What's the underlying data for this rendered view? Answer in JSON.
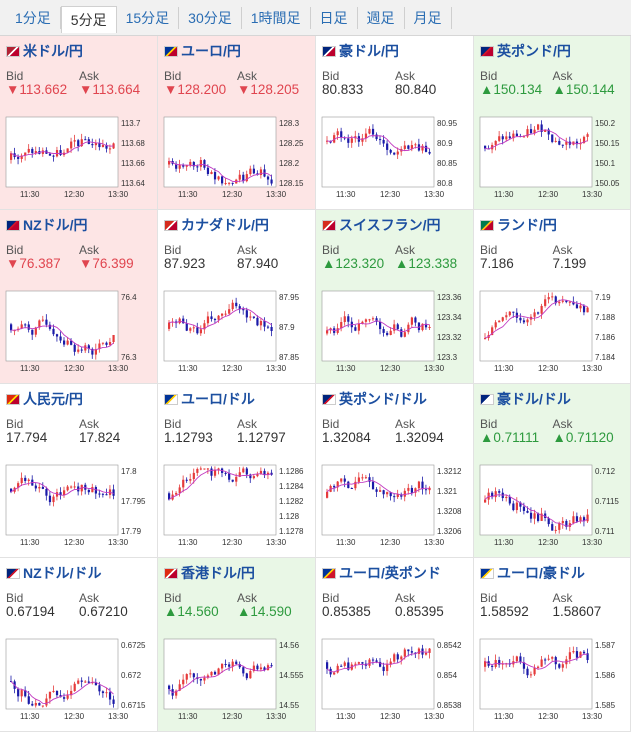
{
  "tabs": [
    {
      "label": "1分足",
      "active": false
    },
    {
      "label": "5分足",
      "active": true
    },
    {
      "label": "15分足",
      "active": false
    },
    {
      "label": "30分足",
      "active": false
    },
    {
      "label": "1時間足",
      "active": false
    },
    {
      "label": "日足",
      "active": false
    },
    {
      "label": "週足",
      "active": false
    },
    {
      "label": "月足",
      "active": false
    }
  ],
  "bid_label": "Bid",
  "ask_label": "Ask",
  "x_ticks": [
    "11:30",
    "12:30",
    "13:30"
  ],
  "colors": {
    "up_candle": "#e53b3b",
    "down_candle": "#1a1aa8",
    "ma": "#c23ac2",
    "down_text": "#e0454f",
    "up_text": "#2d9a3e",
    "down_bg": "#fde5e5",
    "up_bg": "#e9f7e6"
  },
  "pairs": [
    {
      "name": "米ドル/円",
      "flag": "us-jp-flag",
      "trend": "down",
      "bid": "▼113.662",
      "ask": "▼113.664",
      "y_ticks": [
        "113.7",
        "113.68",
        "113.66",
        "113.64"
      ],
      "base": 113.665,
      "range": 0.07
    },
    {
      "name": "ユーロ/円",
      "flag": "eu-jp-flag",
      "trend": "down",
      "bid": "▼128.200",
      "ask": "▼128.205",
      "y_ticks": [
        "128.3",
        "128.25",
        "128.2",
        "128.15"
      ],
      "base": 128.23,
      "range": 0.15
    },
    {
      "name": "豪ドル/円",
      "flag": "au-jp-flag",
      "trend": "flat",
      "bid": "80.833",
      "ask": "80.840",
      "y_ticks": [
        "80.95",
        "80.9",
        "80.85",
        "80.8"
      ],
      "base": 80.86,
      "range": 0.15
    },
    {
      "name": "英ポンド/円",
      "flag": "gb-jp-flag",
      "trend": "up",
      "bid": "▲150.134",
      "ask": "▲150.144",
      "y_ticks": [
        "150.2",
        "150.15",
        "150.1",
        "150.05"
      ],
      "base": 150.13,
      "range": 0.15
    },
    {
      "name": "NZドル/円",
      "flag": "nz-jp-flag",
      "trend": "down",
      "bid": "▼76.387",
      "ask": "▼76.399",
      "y_ticks": [
        "76.4",
        "76.3"
      ],
      "base": 76.4,
      "range": 0.14
    },
    {
      "name": "カナダドル/円",
      "flag": "ca-jp-flag",
      "trend": "flat",
      "bid": "87.923",
      "ask": "87.940",
      "y_ticks": [
        "87.95",
        "87.9",
        "87.85"
      ],
      "base": 87.92,
      "range": 0.12
    },
    {
      "name": "スイスフラン/円",
      "flag": "ch-jp-flag",
      "trend": "up",
      "bid": "▲123.320",
      "ask": "▲123.338",
      "y_ticks": [
        "123.36",
        "123.34",
        "123.32",
        "123.3"
      ],
      "base": 123.325,
      "range": 0.07
    },
    {
      "name": "ランド/円",
      "flag": "za-jp-flag",
      "trend": "flat",
      "bid": "7.186",
      "ask": "7.199",
      "y_ticks": [
        "7.19",
        "7.188",
        "7.186",
        "7.184"
      ],
      "base": 7.187,
      "range": 0.007
    },
    {
      "name": "人民元/円",
      "flag": "cn-jp-flag",
      "trend": "flat",
      "bid": "17.794",
      "ask": "17.824",
      "y_ticks": [
        "17.8",
        "17.795",
        "17.79"
      ],
      "base": 17.794,
      "range": 0.012
    },
    {
      "name": "ユーロ/ドル",
      "flag": "eu-us-flag",
      "trend": "flat",
      "bid": "1.12793",
      "ask": "1.12797",
      "y_ticks": [
        "1.1286",
        "1.1284",
        "1.1282",
        "1.128",
        "1.1278"
      ],
      "base": 1.1282,
      "range": 0.001
    },
    {
      "name": "英ポンド/ドル",
      "flag": "gb-us-flag",
      "trend": "flat",
      "bid": "1.32084",
      "ask": "1.32094",
      "y_ticks": [
        "1.3212",
        "1.321",
        "1.3208",
        "1.3206"
      ],
      "base": 1.3209,
      "range": 0.0007
    },
    {
      "name": "豪ドル/ドル",
      "flag": "au-us-flag",
      "trend": "up",
      "bid": "▲0.71111",
      "ask": "▲0.71120",
      "y_ticks": [
        "0.712",
        "0.7115",
        "0.711"
      ],
      "base": 0.7114,
      "range": 0.0012
    },
    {
      "name": "NZドル/ドル",
      "flag": "nz-us-flag",
      "trend": "flat",
      "bid": "0.67194",
      "ask": "0.67210",
      "y_ticks": [
        "0.6725",
        "0.672",
        "0.6715"
      ],
      "base": 0.672,
      "range": 0.0012
    },
    {
      "name": "香港ドル/円",
      "flag": "hk-jp-flag",
      "trend": "up",
      "bid": "▲14.560",
      "ask": "▲14.590",
      "y_ticks": [
        "14.56",
        "14.555",
        "14.55"
      ],
      "base": 14.556,
      "range": 0.014
    },
    {
      "name": "ユーロ/英ポンド",
      "flag": "eu-gb-flag",
      "trend": "flat",
      "bid": "0.85385",
      "ask": "0.85395",
      "y_ticks": [
        "0.8542",
        "0.854",
        "0.8538"
      ],
      "base": 0.854,
      "range": 0.0005
    },
    {
      "name": "ユーロ/豪ドル",
      "flag": "eu-au-flag",
      "trend": "flat",
      "bid": "1.58592",
      "ask": "1.58607",
      "y_ticks": [
        "1.587",
        "1.586",
        "1.585"
      ],
      "base": 1.586,
      "range": 0.0025
    }
  ]
}
